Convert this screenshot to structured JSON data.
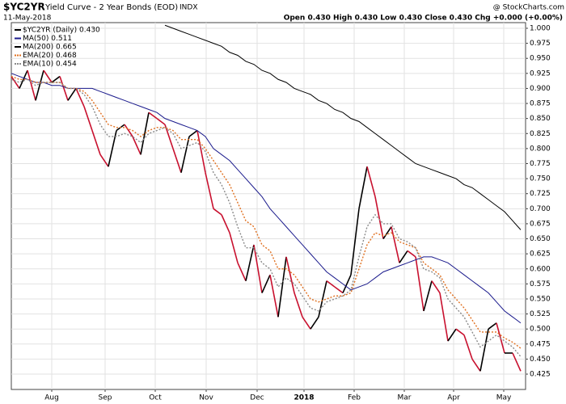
{
  "header": {
    "symbol": "$YC2YR",
    "title": "Yield Curve - 2 Year Bonds (EOD)",
    "exchange": "INDX",
    "date": "11-May-2018",
    "quote": "Open 0.430  High 0.430  Low 0.430  Close 0.430  Chg +0.000 (+0.00%)",
    "source": "@ StockCharts.com"
  },
  "chart_data": {
    "type": "line",
    "x": [
      0,
      1,
      2,
      3,
      4,
      5,
      6,
      7,
      8,
      9,
      10,
      11,
      12,
      13,
      14,
      15,
      16,
      17,
      18,
      19,
      20,
      21,
      22,
      23,
      24,
      25,
      26,
      27,
      28,
      29,
      30,
      31,
      32,
      33,
      34,
      35,
      36,
      37,
      38,
      39,
      40,
      41,
      42,
      43,
      44,
      45,
      46,
      47,
      48,
      49,
      50,
      51,
      52,
      53,
      54,
      55,
      56,
      57,
      58,
      59,
      60,
      61,
      62,
      63
    ],
    "xlim": [
      0,
      63.6
    ],
    "xticks": [
      {
        "value": 5,
        "label": "Aug"
      },
      {
        "value": 11.6,
        "label": "Sep"
      },
      {
        "value": 17.8,
        "label": "Oct"
      },
      {
        "value": 24.1,
        "label": "Nov"
      },
      {
        "value": 30.4,
        "label": "Dec"
      },
      {
        "value": 36.2,
        "label": "2018"
      },
      {
        "value": 42.4,
        "label": "Feb"
      },
      {
        "value": 48.6,
        "label": "Mar"
      },
      {
        "value": 54.7,
        "label": "Apr"
      },
      {
        "value": 60.9,
        "label": "May"
      }
    ],
    "ylim": [
      0.3995,
      1.0094
    ],
    "yticks": [
      0.425,
      {
        "value": 0.45,
        "label": "0.450"
      },
      0.475,
      {
        "value": 0.5,
        "label": "0.500"
      },
      0.525,
      {
        "value": 0.55,
        "label": "0.550"
      },
      0.575,
      {
        "value": 0.6,
        "label": "0.600"
      },
      0.625,
      {
        "value": 0.65,
        "label": "0.650"
      },
      0.675,
      {
        "value": 0.7,
        "label": "0.700"
      },
      0.725,
      {
        "value": 0.75,
        "label": "0.750"
      },
      0.775,
      {
        "value": 0.8,
        "label": "0.800"
      },
      0.825,
      {
        "value": 0.85,
        "label": "0.850"
      },
      0.875,
      {
        "value": 0.9,
        "label": "0.900"
      },
      0.925,
      {
        "value": 0.95,
        "label": "0.950"
      },
      0.975,
      {
        "value": 1,
        "label": "1.000"
      }
    ],
    "grid": true,
    "series": [
      {
        "name": "$YC2YR (Daily) 0.430",
        "color": "#000000",
        "down_color": "#c8102e",
        "dash": "solid",
        "values": [
          0.92,
          0.9,
          0.93,
          0.88,
          0.93,
          0.91,
          0.92,
          0.88,
          0.9,
          0.87,
          0.83,
          0.79,
          0.77,
          0.83,
          0.84,
          0.82,
          0.79,
          0.86,
          0.85,
          0.84,
          0.8,
          0.76,
          0.82,
          0.83,
          0.76,
          0.7,
          0.69,
          0.66,
          0.61,
          0.58,
          0.64,
          0.56,
          0.59,
          0.52,
          0.62,
          0.56,
          0.52,
          0.5,
          0.52,
          0.58,
          0.57,
          0.56,
          0.59,
          0.7,
          0.77,
          0.72,
          0.65,
          0.67,
          0.61,
          0.63,
          0.62,
          0.53,
          0.58,
          0.56,
          0.48,
          0.5,
          0.49,
          0.45,
          0.43,
          0.5,
          0.51,
          0.46,
          0.46,
          0.43
        ]
      },
      {
        "name": "MA(50) 0.511",
        "color": "#1a1a8c",
        "dash": "solid",
        "values": [
          0.925,
          0.92,
          0.915,
          0.91,
          0.91,
          0.905,
          0.905,
          0.9,
          0.9,
          0.9,
          0.9,
          0.895,
          0.89,
          0.885,
          0.88,
          0.875,
          0.87,
          0.865,
          0.86,
          0.85,
          0.845,
          0.84,
          0.835,
          0.83,
          0.82,
          0.8,
          0.79,
          0.78,
          0.765,
          0.75,
          0.735,
          0.72,
          0.7,
          0.685,
          0.67,
          0.655,
          0.64,
          0.625,
          0.61,
          0.595,
          0.585,
          0.575,
          0.565,
          0.57,
          0.575,
          0.585,
          0.595,
          0.6,
          0.605,
          0.61,
          0.615,
          0.62,
          0.62,
          0.615,
          0.61,
          0.6,
          0.59,
          0.58,
          0.57,
          0.56,
          0.545,
          0.53,
          0.52,
          0.51
        ]
      },
      {
        "name": "MA(200) 0.665",
        "color": "#000000",
        "dash": "solid",
        "values": [
          null,
          null,
          null,
          null,
          null,
          null,
          null,
          null,
          null,
          null,
          null,
          null,
          null,
          null,
          null,
          null,
          null,
          null,
          null,
          1.005,
          1.0,
          0.995,
          0.99,
          0.985,
          0.98,
          0.975,
          0.97,
          0.96,
          0.955,
          0.945,
          0.94,
          0.93,
          0.925,
          0.915,
          0.91,
          0.9,
          0.895,
          0.89,
          0.88,
          0.875,
          0.865,
          0.86,
          0.85,
          0.845,
          0.835,
          0.825,
          0.815,
          0.805,
          0.795,
          0.785,
          0.775,
          0.77,
          0.765,
          0.76,
          0.755,
          0.75,
          0.74,
          0.735,
          0.725,
          0.715,
          0.705,
          0.695,
          0.68,
          0.665
        ]
      },
      {
        "name": "EMA(20) 0.468",
        "color": "#e07020",
        "dash": "dotted",
        "values": [
          0.92,
          0.915,
          0.915,
          0.91,
          0.91,
          0.91,
          0.91,
          0.9,
          0.9,
          0.895,
          0.88,
          0.86,
          0.84,
          0.835,
          0.835,
          0.83,
          0.82,
          0.83,
          0.835,
          0.835,
          0.83,
          0.815,
          0.815,
          0.815,
          0.8,
          0.78,
          0.76,
          0.74,
          0.71,
          0.68,
          0.67,
          0.64,
          0.63,
          0.6,
          0.6,
          0.59,
          0.57,
          0.55,
          0.545,
          0.55,
          0.555,
          0.555,
          0.56,
          0.6,
          0.64,
          0.66,
          0.655,
          0.66,
          0.645,
          0.64,
          0.635,
          0.61,
          0.6,
          0.59,
          0.565,
          0.55,
          0.535,
          0.515,
          0.495,
          0.495,
          0.495,
          0.485,
          0.478,
          0.468
        ]
      },
      {
        "name": "EMA(10) 0.454",
        "color": "#8a8a8a",
        "dash": "dotted",
        "values": [
          0.915,
          0.91,
          0.915,
          0.905,
          0.91,
          0.91,
          0.91,
          0.9,
          0.9,
          0.89,
          0.87,
          0.84,
          0.82,
          0.82,
          0.825,
          0.82,
          0.81,
          0.825,
          0.83,
          0.835,
          0.825,
          0.8,
          0.805,
          0.81,
          0.795,
          0.76,
          0.74,
          0.71,
          0.67,
          0.635,
          0.635,
          0.61,
          0.6,
          0.57,
          0.585,
          0.575,
          0.555,
          0.535,
          0.53,
          0.545,
          0.55,
          0.555,
          0.565,
          0.62,
          0.67,
          0.69,
          0.675,
          0.675,
          0.65,
          0.645,
          0.635,
          0.6,
          0.595,
          0.585,
          0.55,
          0.535,
          0.52,
          0.495,
          0.47,
          0.48,
          0.49,
          0.48,
          0.47,
          0.454
        ]
      }
    ]
  }
}
